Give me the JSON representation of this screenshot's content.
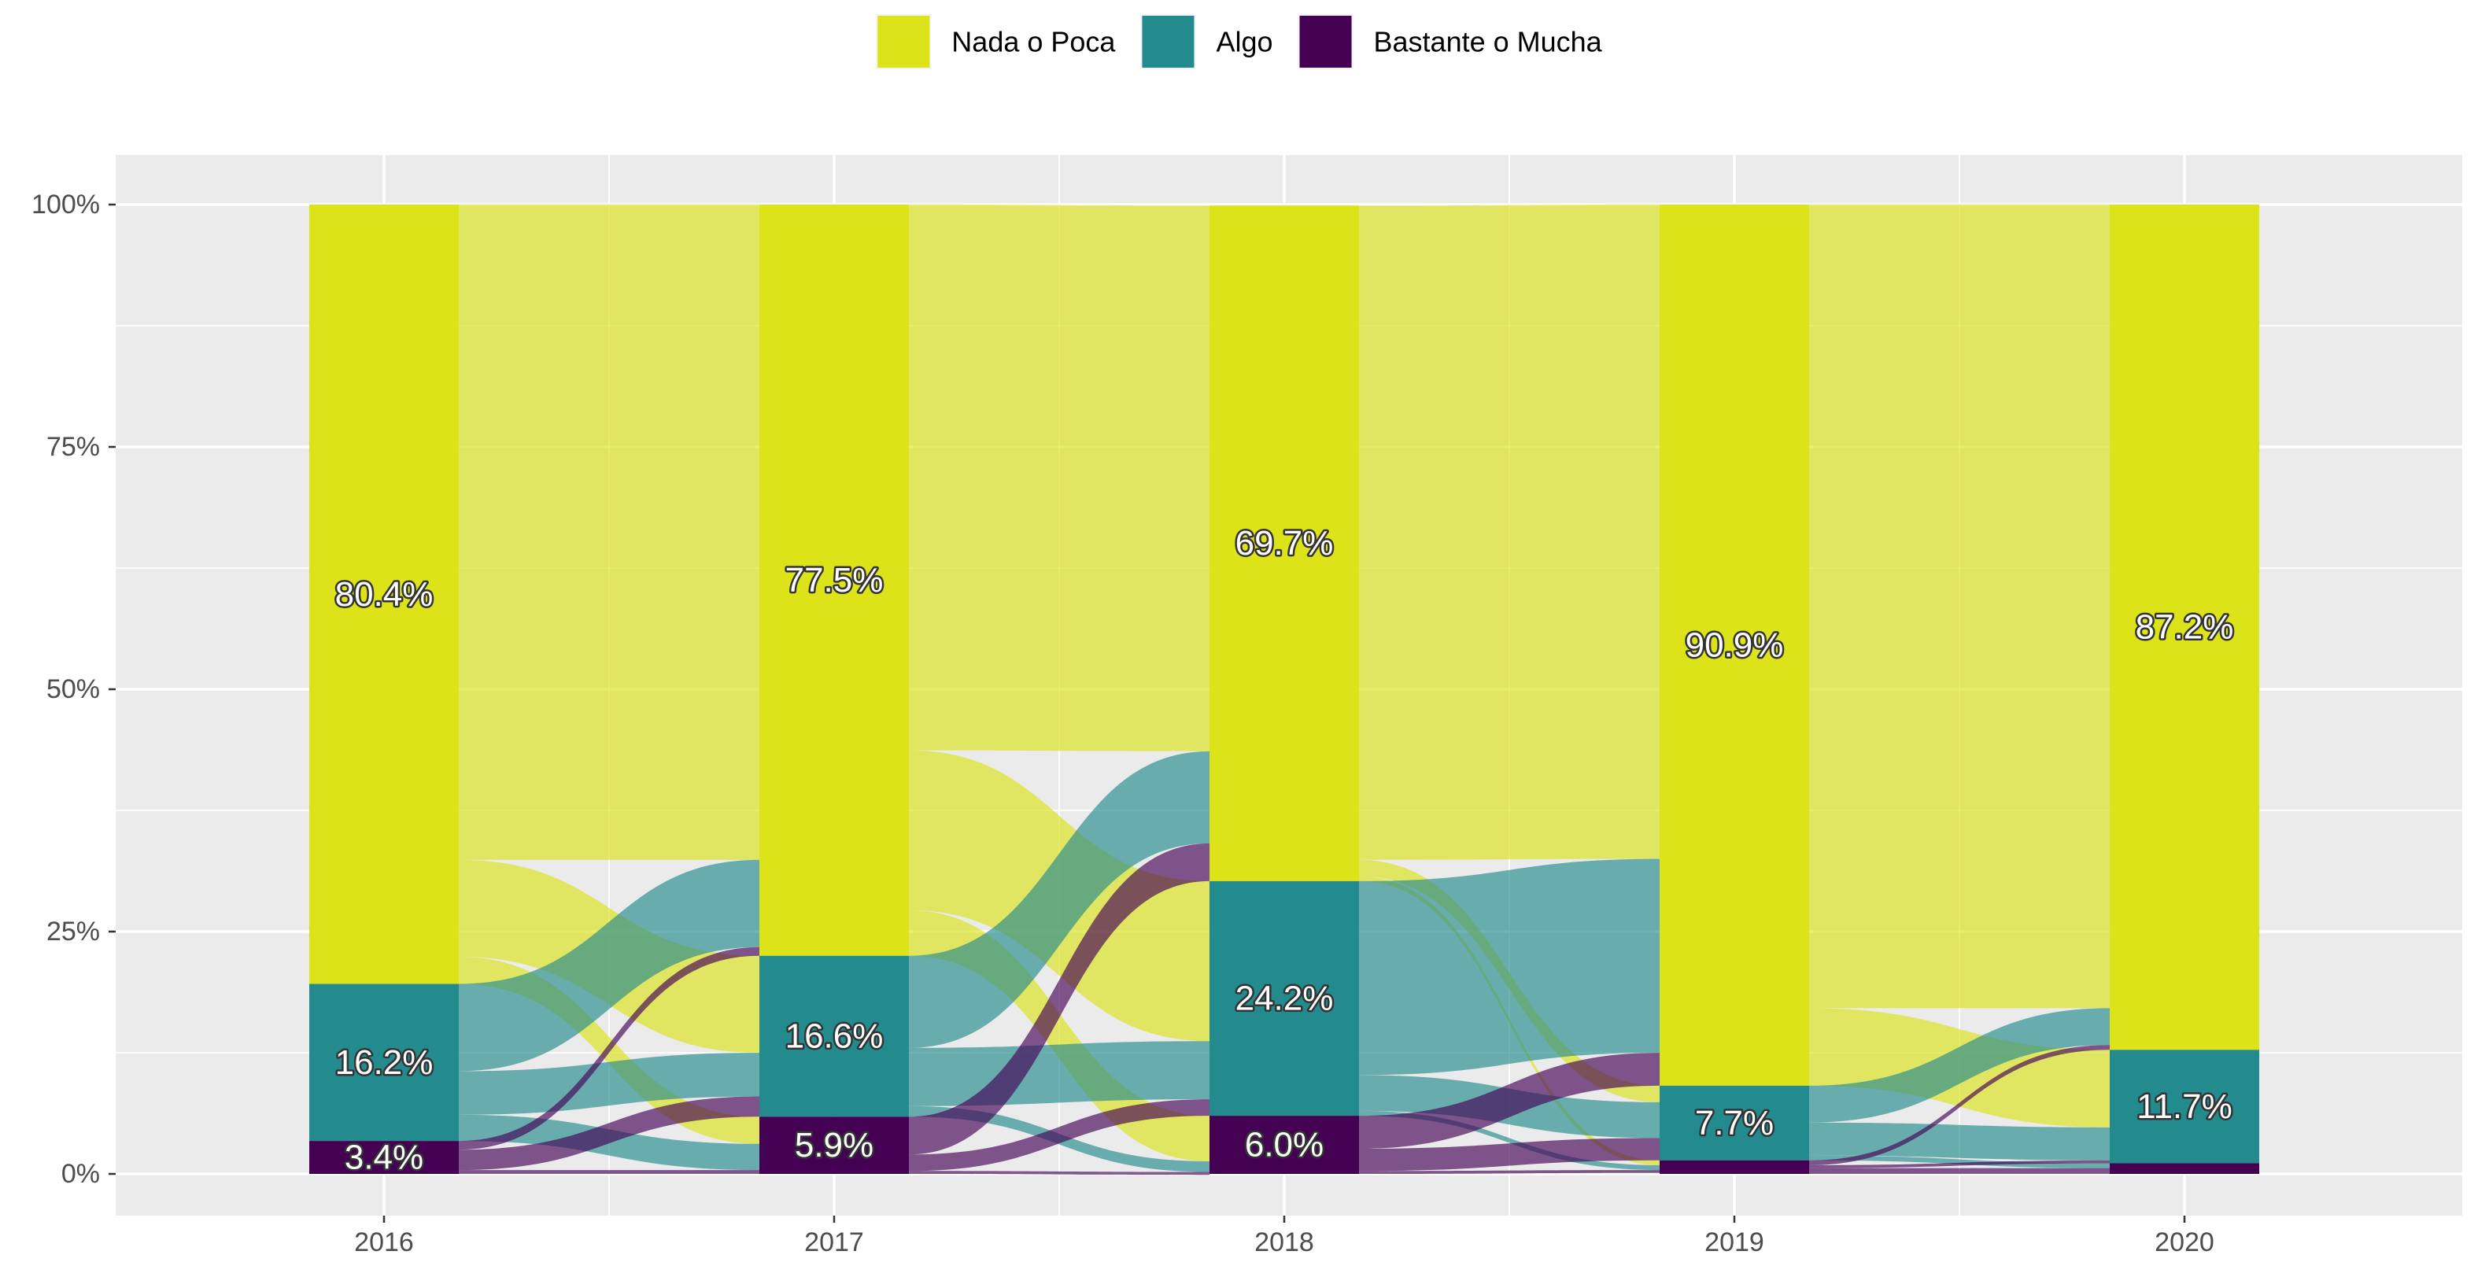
{
  "chart_data": {
    "type": "alluvial",
    "title": "",
    "xlabel": "",
    "ylabel": "",
    "categories": [
      "2016",
      "2017",
      "2018",
      "2019",
      "2020"
    ],
    "ylim": [
      0,
      100
    ],
    "y_ticks": [
      {
        "value": 0,
        "label": "0%"
      },
      {
        "value": 25,
        "label": "25%"
      },
      {
        "value": 50,
        "label": "50%"
      },
      {
        "value": 75,
        "label": "75%"
      },
      {
        "value": 100,
        "label": "100%"
      }
    ],
    "legend_position": "top",
    "grid": true,
    "series": [
      {
        "name": "Nada o Poca",
        "color": "#DCE319",
        "values": [
          80.4,
          77.5,
          69.7,
          90.9,
          87.2
        ],
        "labels": [
          "80.4%",
          "77.5%",
          "69.7%",
          "90.9%",
          "87.2%"
        ]
      },
      {
        "name": "Algo",
        "color": "#238A8D",
        "values": [
          16.2,
          16.6,
          24.2,
          7.7,
          11.7
        ],
        "labels": [
          "16.2%",
          "16.6%",
          "24.2%",
          "7.7%",
          "11.7%"
        ]
      },
      {
        "name": "Bastante o Mucha",
        "color": "#440154",
        "values": [
          3.4,
          5.9,
          6.0,
          1.4,
          1.1
        ],
        "labels": [
          "3.4%",
          "5.9%",
          "6.0%",
          "",
          ""
        ]
      }
    ],
    "flows": [
      {
        "from_year": "2016",
        "to_year": "2017",
        "transitions": [
          {
            "from": "Nada o Poca",
            "to": "Nada o Poca",
            "value": 67.6
          },
          {
            "from": "Nada o Poca",
            "to": "Algo",
            "value": 10.0
          },
          {
            "from": "Nada o Poca",
            "to": "Bastante o Mucha",
            "value": 2.8
          },
          {
            "from": "Algo",
            "to": "Nada o Poca",
            "value": 9.0
          },
          {
            "from": "Algo",
            "to": "Algo",
            "value": 4.5
          },
          {
            "from": "Algo",
            "to": "Bastante o Mucha",
            "value": 2.7
          },
          {
            "from": "Bastante o Mucha",
            "to": "Nada o Poca",
            "value": 0.9
          },
          {
            "from": "Bastante o Mucha",
            "to": "Algo",
            "value": 2.1
          },
          {
            "from": "Bastante o Mucha",
            "to": "Bastante o Mucha",
            "value": 0.4
          }
        ]
      },
      {
        "from_year": "2017",
        "to_year": "2018",
        "transitions": [
          {
            "from": "Nada o Poca",
            "to": "Nada o Poca",
            "value": 56.3
          },
          {
            "from": "Nada o Poca",
            "to": "Algo",
            "value": 16.5
          },
          {
            "from": "Nada o Poca",
            "to": "Bastante o Mucha",
            "value": 4.7
          },
          {
            "from": "Algo",
            "to": "Nada o Poca",
            "value": 9.5
          },
          {
            "from": "Algo",
            "to": "Algo",
            "value": 6.0
          },
          {
            "from": "Algo",
            "to": "Bastante o Mucha",
            "value": 1.1
          },
          {
            "from": "Bastante o Mucha",
            "to": "Nada o Poca",
            "value": 3.9
          },
          {
            "from": "Bastante o Mucha",
            "to": "Algo",
            "value": 1.7
          },
          {
            "from": "Bastante o Mucha",
            "to": "Bastante o Mucha",
            "value": 0.3
          }
        ]
      },
      {
        "from_year": "2018",
        "to_year": "2019",
        "transitions": [
          {
            "from": "Nada o Poca",
            "to": "Nada o Poca",
            "value": 67.5
          },
          {
            "from": "Nada o Poca",
            "to": "Algo",
            "value": 1.7
          },
          {
            "from": "Nada o Poca",
            "to": "Bastante o Mucha",
            "value": 0.5
          },
          {
            "from": "Algo",
            "to": "Nada o Poca",
            "value": 20.0
          },
          {
            "from": "Algo",
            "to": "Algo",
            "value": 3.7
          },
          {
            "from": "Algo",
            "to": "Bastante o Mucha",
            "value": 0.5
          },
          {
            "from": "Bastante o Mucha",
            "to": "Nada o Poca",
            "value": 3.4
          },
          {
            "from": "Bastante o Mucha",
            "to": "Algo",
            "value": 2.3
          },
          {
            "from": "Bastante o Mucha",
            "to": "Bastante o Mucha",
            "value": 0.3
          }
        ]
      },
      {
        "from_year": "2019",
        "to_year": "2020",
        "transitions": [
          {
            "from": "Nada o Poca",
            "to": "Nada o Poca",
            "value": 82.9
          },
          {
            "from": "Nada o Poca",
            "to": "Algo",
            "value": 8.0
          },
          {
            "from": "Algo",
            "to": "Nada o Poca",
            "value": 3.8
          },
          {
            "from": "Algo",
            "to": "Algo",
            "value": 3.4
          },
          {
            "from": "Algo",
            "to": "Bastante o Mucha",
            "value": 0.5
          },
          {
            "from": "Bastante o Mucha",
            "to": "Nada o Poca",
            "value": 0.5
          },
          {
            "from": "Bastante o Mucha",
            "to": "Algo",
            "value": 0.3
          },
          {
            "from": "Bastante o Mucha",
            "to": "Bastante o Mucha",
            "value": 0.6
          }
        ]
      }
    ]
  }
}
